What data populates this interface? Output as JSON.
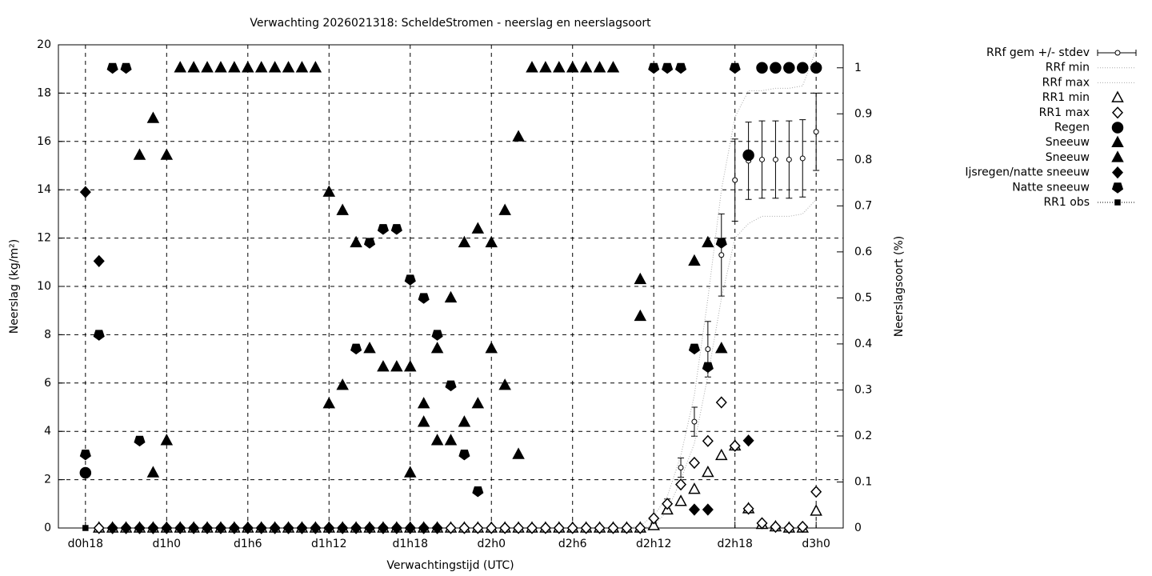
{
  "chart_data": {
    "type": "scatter",
    "title": "Verwachting 2026021318: ScheldeStromen - neerslag en neerslagsoort",
    "xlabel": "Verwachtingstijd (UTC)",
    "ylabel": "Neerslag (kg/m²)",
    "y2label": "Neerslagsoort (%)",
    "grid": true,
    "legend": "outside-right",
    "xlim": [
      16,
      74
    ],
    "xticks": [
      {
        "value": 18,
        "label": "d0h18"
      },
      {
        "value": 24,
        "label": "d1h0"
      },
      {
        "value": 30,
        "label": "d1h6"
      },
      {
        "value": 36,
        "label": "d1h12"
      },
      {
        "value": 42,
        "label": "d1h18"
      },
      {
        "value": 48,
        "label": "d2h0"
      },
      {
        "value": 54,
        "label": "d2h6"
      },
      {
        "value": 60,
        "label": "d2h12"
      },
      {
        "value": 66,
        "label": "d2h18"
      },
      {
        "value": 72,
        "label": "d3h0"
      }
    ],
    "ylim": [
      0,
      20
    ],
    "yticks": [
      0,
      2,
      4,
      6,
      8,
      10,
      12,
      14,
      16,
      18,
      20
    ],
    "y2lim": [
      0,
      1.05
    ],
    "y2ticks": [
      0,
      0.1,
      0.2,
      0.3,
      0.4,
      0.5,
      0.6,
      0.7,
      0.8,
      0.9,
      1
    ],
    "x": [
      18,
      19,
      20,
      21,
      22,
      23,
      24,
      25,
      26,
      27,
      28,
      29,
      30,
      31,
      32,
      33,
      34,
      35,
      36,
      37,
      38,
      39,
      40,
      41,
      42,
      43,
      44,
      45,
      46,
      47,
      48,
      49,
      50,
      51,
      52,
      53,
      54,
      55,
      56,
      57,
      58,
      59,
      60,
      61,
      62,
      63,
      64,
      65,
      66,
      67,
      68,
      69,
      70,
      71,
      72
    ],
    "series": [
      {
        "name": "RRf gem +/- stdev",
        "color": "#000000",
        "style": "errorbars",
        "axis": "y",
        "values": [
          null,
          null,
          null,
          null,
          null,
          null,
          null,
          null,
          null,
          null,
          null,
          null,
          null,
          null,
          null,
          null,
          null,
          null,
          null,
          null,
          null,
          null,
          null,
          null,
          null,
          null,
          null,
          null,
          null,
          null,
          null,
          null,
          null,
          null,
          null,
          null,
          null,
          null,
          null,
          null,
          null,
          null,
          0.3,
          1.0,
          2.5,
          4.4,
          7.4,
          11.3,
          14.4,
          15.2,
          15.25,
          15.25,
          15.25,
          15.3,
          16.4
        ],
        "errors": [
          null,
          null,
          null,
          null,
          null,
          null,
          null,
          null,
          null,
          null,
          null,
          null,
          null,
          null,
          null,
          null,
          null,
          null,
          null,
          null,
          null,
          null,
          null,
          null,
          null,
          null,
          null,
          null,
          null,
          null,
          null,
          null,
          null,
          null,
          null,
          null,
          null,
          null,
          null,
          null,
          null,
          null,
          0.1,
          0.2,
          0.4,
          0.6,
          1.15,
          1.7,
          1.7,
          1.6,
          1.6,
          1.6,
          1.6,
          1.6,
          1.6
        ]
      },
      {
        "name": "RRf min",
        "color": "#aaaaaa",
        "style": "line",
        "axis": "y",
        "values": [
          null,
          null,
          null,
          null,
          null,
          null,
          null,
          null,
          null,
          null,
          null,
          null,
          null,
          null,
          null,
          null,
          null,
          null,
          null,
          null,
          null,
          null,
          null,
          null,
          null,
          null,
          null,
          null,
          null,
          null,
          null,
          null,
          null,
          null,
          null,
          null,
          null,
          null,
          null,
          null,
          0,
          0,
          0.1,
          0.7,
          2.0,
          3.5,
          6.3,
          9.5,
          12.0,
          12.6,
          12.9,
          12.9,
          12.9,
          13.0,
          13.6
        ]
      },
      {
        "name": "RRf max",
        "color": "#aaaaaa",
        "style": "line",
        "axis": "y",
        "values": [
          null,
          null,
          null,
          null,
          null,
          null,
          null,
          null,
          null,
          null,
          null,
          null,
          null,
          null,
          null,
          null,
          null,
          null,
          null,
          null,
          null,
          null,
          null,
          null,
          null,
          null,
          null,
          null,
          null,
          null,
          null,
          null,
          null,
          null,
          null,
          null,
          null,
          null,
          null,
          null,
          0,
          0.1,
          0.5,
          1.3,
          3.0,
          5.5,
          9.5,
          14.0,
          17.0,
          18.1,
          18.1,
          18.2,
          18.2,
          18.3,
          19.8
        ]
      },
      {
        "name": "RR1 min",
        "color": "#000000",
        "style": "points",
        "marker": "triangle-open",
        "axis": "y",
        "values": [
          null,
          0,
          0,
          0,
          0,
          0,
          0,
          0,
          0,
          0,
          0,
          0,
          0,
          0,
          0,
          0,
          0,
          0,
          0,
          0,
          0,
          0,
          0,
          0,
          0,
          0,
          0,
          0,
          0,
          0,
          0,
          0,
          0,
          0,
          0,
          0,
          0,
          0,
          0,
          0,
          0,
          0,
          0.1,
          0.75,
          1.1,
          1.6,
          2.3,
          3.0,
          3.4,
          0.8,
          0.15,
          0.05,
          0,
          0,
          0.7
        ]
      },
      {
        "name": "RR1 max",
        "color": "#000000",
        "style": "points",
        "marker": "diamond-open",
        "axis": "y",
        "values": [
          null,
          0,
          0,
          0,
          0,
          0,
          0,
          0,
          0,
          0,
          0,
          0,
          0,
          0,
          0,
          0,
          0,
          0,
          0,
          0,
          0,
          0,
          0,
          0,
          0,
          0,
          0,
          0,
          0,
          0,
          0,
          0,
          0,
          0,
          0,
          0,
          0,
          0,
          0,
          0,
          0,
          0,
          0.4,
          1.0,
          1.8,
          2.7,
          3.6,
          5.2,
          3.4,
          0.8,
          0.2,
          0.05,
          0,
          0.05,
          1.5
        ]
      },
      {
        "name": "Regen",
        "color": "#000000",
        "style": "points",
        "marker": "circle",
        "axis": "y2",
        "values": [
          0.12,
          null,
          null,
          null,
          null,
          null,
          null,
          null,
          null,
          null,
          null,
          null,
          null,
          null,
          null,
          null,
          null,
          null,
          null,
          null,
          null,
          null,
          null,
          null,
          null,
          null,
          null,
          null,
          null,
          null,
          null,
          null,
          null,
          null,
          null,
          null,
          null,
          null,
          null,
          null,
          null,
          null,
          null,
          null,
          null,
          null,
          null,
          null,
          null,
          0.81,
          1,
          1,
          1,
          1,
          1
        ]
      },
      {
        "name": "Sneeuw",
        "color": "#000000",
        "style": "points",
        "marker": "triangle",
        "axis": "y2",
        "values": [
          null,
          null,
          null,
          null,
          0.81,
          0.89,
          0.81,
          1,
          1,
          1,
          1,
          1,
          1,
          1,
          1,
          1,
          1,
          1,
          0.73,
          0.69,
          0.62,
          0.39,
          0.35,
          0.35,
          0.35,
          0.27,
          0.39,
          0.5,
          0.62,
          0.65,
          0.62,
          0.69,
          0.85,
          1,
          1,
          1,
          1,
          1,
          1,
          1,
          null,
          0.54,
          null,
          null,
          null,
          0.58,
          0.62,
          0.39,
          null,
          null,
          null,
          null,
          null,
          null,
          null
        ]
      },
      {
        "name": "Sneeuw",
        "color": "#000000",
        "style": "points",
        "marker": "triangle",
        "axis": "y2",
        "values": [
          null,
          null,
          null,
          null,
          null,
          0.12,
          0.19,
          null,
          null,
          null,
          null,
          null,
          null,
          null,
          null,
          null,
          null,
          null,
          0.27,
          0.31,
          null,
          null,
          null,
          null,
          0.12,
          0.23,
          0.19,
          0.19,
          0.23,
          0.27,
          0.39,
          0.31,
          0.16,
          null,
          null,
          null,
          null,
          null,
          null,
          null,
          null,
          0.46,
          null,
          null,
          null,
          null,
          null,
          null,
          null,
          null,
          null,
          null,
          null,
          null,
          null
        ]
      },
      {
        "name": "Ijsregen/natte sneeuw",
        "color": "#000000",
        "style": "points",
        "marker": "diamond",
        "axis": "y2",
        "values": [
          0.73,
          0.58,
          0,
          0,
          0,
          0,
          0,
          0,
          0,
          0,
          0,
          0,
          0,
          0,
          0,
          0,
          0,
          0,
          0,
          0,
          0,
          0,
          0,
          0,
          0,
          0,
          0,
          null,
          null,
          null,
          null,
          null,
          null,
          null,
          null,
          null,
          null,
          null,
          null,
          null,
          null,
          null,
          null,
          null,
          null,
          0.04,
          0.04,
          null,
          null,
          0.19,
          null,
          null,
          null,
          null,
          null
        ]
      },
      {
        "name": "Natte sneeuw",
        "color": "#000000",
        "style": "points",
        "marker": "pentagon",
        "axis": "y2",
        "values": [
          0.16,
          0.42,
          1,
          1,
          0.19,
          null,
          null,
          null,
          null,
          null,
          null,
          null,
          null,
          null,
          null,
          null,
          null,
          null,
          null,
          null,
          0.39,
          0.62,
          0.65,
          0.65,
          0.54,
          0.5,
          0.42,
          0.31,
          0.16,
          0.08,
          null,
          null,
          null,
          null,
          null,
          null,
          null,
          null,
          null,
          null,
          null,
          null,
          1,
          1,
          1,
          0.39,
          0.35,
          0.62,
          1,
          null,
          null,
          null,
          null,
          null,
          null
        ]
      },
      {
        "name": "RR1 obs",
        "color": "#000000",
        "style": "points",
        "marker": "square",
        "axis": "y",
        "values": [
          0,
          null,
          null,
          null,
          null,
          null,
          null,
          null,
          null,
          null,
          null,
          null,
          null,
          null,
          null,
          null,
          null,
          null,
          null,
          null,
          null,
          null,
          null,
          null,
          null,
          null,
          null,
          null,
          null,
          null,
          null,
          null,
          null,
          null,
          null,
          null,
          null,
          null,
          null,
          null,
          null,
          null,
          null,
          null,
          null,
          null,
          null,
          null,
          null,
          null,
          null,
          null,
          null,
          null,
          null
        ]
      }
    ]
  }
}
